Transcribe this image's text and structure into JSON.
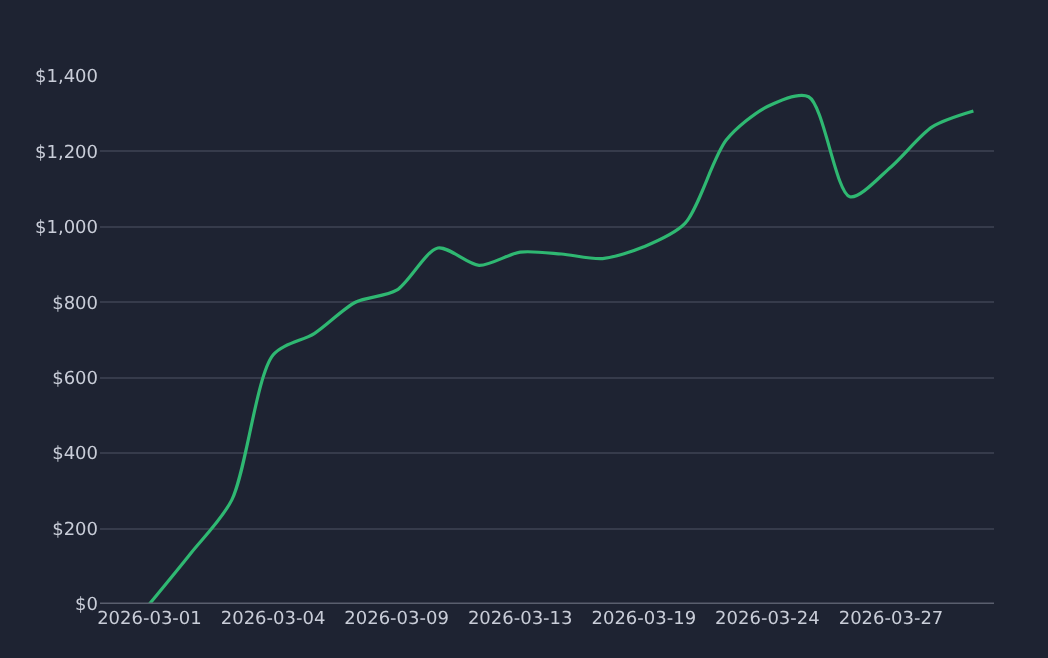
{
  "chart_data": {
    "type": "line",
    "categories": [
      "2026-03-01",
      null,
      null,
      "2026-03-04",
      null,
      null,
      "2026-03-09",
      null,
      null,
      "2026-03-13",
      null,
      null,
      "2026-03-19",
      null,
      null,
      "2026-03-24",
      null,
      null,
      "2026-03-27",
      null,
      null
    ],
    "series": [
      {
        "color": "#2fb872",
        "values": [
          0,
          134,
          276,
          660,
          717,
          800,
          832,
          944,
          898,
          933,
          928,
          916,
          947,
          1009,
          1230,
          1319,
          1345,
          1080,
          1159,
          1265,
          1307
        ]
      }
    ],
    "ylim": [
      0,
      1400
    ],
    "yticks": [
      {
        "value": 0,
        "label": "$0"
      },
      {
        "value": 200,
        "label": "$200"
      },
      {
        "value": 400,
        "label": "$400"
      },
      {
        "value": 600,
        "label": "$600"
      },
      {
        "value": 800,
        "label": "$800"
      },
      {
        "value": 1000,
        "label": "$1,000"
      },
      {
        "value": 1200,
        "label": "$1,200"
      },
      {
        "value": 1400,
        "label": "$1,400"
      }
    ],
    "grid": "y",
    "legend": false,
    "marker": "none",
    "line_style": "solid"
  }
}
